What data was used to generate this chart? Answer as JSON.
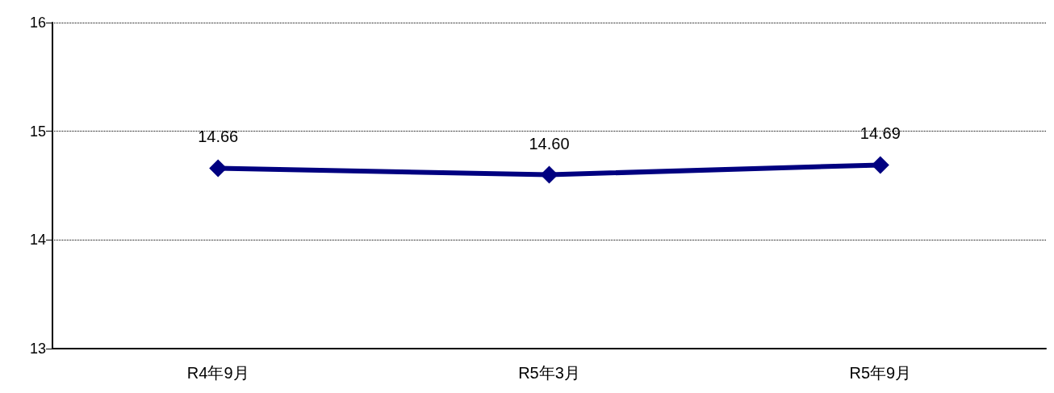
{
  "chart_data": {
    "type": "line",
    "categories": [
      "R4年9月",
      "R5年3月",
      "R5年9月"
    ],
    "series": [
      {
        "color": "#000080",
        "values": [
          14.66,
          14.6,
          14.69
        ],
        "value_labels": [
          "14.66",
          "14.60",
          "14.69"
        ]
      }
    ],
    "ylim": [
      13,
      16
    ],
    "yticks": [
      13,
      14,
      15,
      16
    ],
    "grid": "y",
    "marker": "diamond",
    "line_style": "solid"
  }
}
